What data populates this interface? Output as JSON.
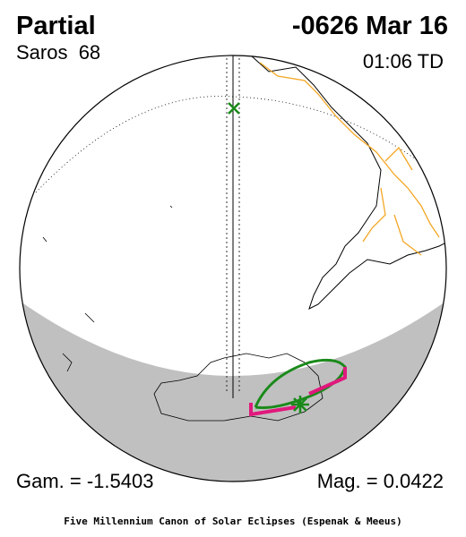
{
  "header": {
    "title": "Partial",
    "date": "-0626 Mar 16",
    "saros": "Saros  68",
    "time": "01:06 TD"
  },
  "footer": {
    "gamma": "Gam. = -1.5403",
    "magnitude": "Mag. = 0.0422",
    "credit": "Five Millennium Canon of Solar Eclipses (Espenak & Meeus)"
  }
}
